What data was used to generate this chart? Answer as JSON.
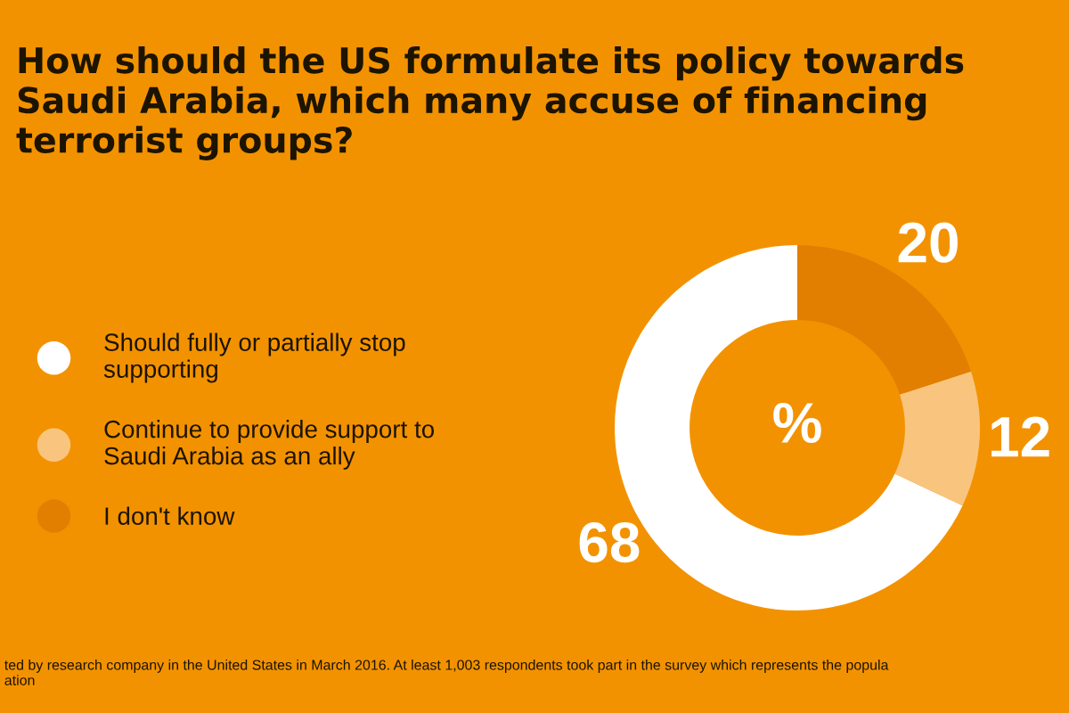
{
  "chart_data": {
    "type": "donut",
    "title": "How should the US formulate its policy towards Saudi Arabia, which many accuse of financing terrorist groups?",
    "categories": [
      "Should fully or partially stop supporting",
      "Continue to provide support to Saudi Arabia as an ally",
      "I don't know"
    ],
    "values": [
      68,
      12,
      20
    ],
    "colors": [
      "#ffffff",
      "#f9c57e",
      "#e27f00"
    ],
    "data_labels": true,
    "legend": "left",
    "annotations": [
      "%",
      "ted by research company in the United States in March 2016. At least 1,003 respondents took part in the survey which represents the popula",
      "ation"
    ]
  }
}
